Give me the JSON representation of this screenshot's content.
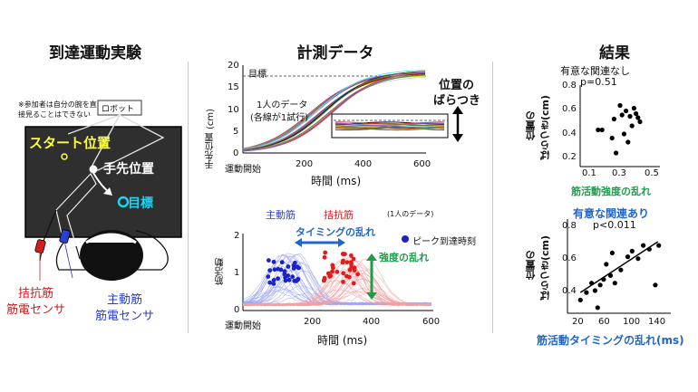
{
  "panels": {
    "experiment": {
      "title": "到達運動実験",
      "note": "※参加者は自分の腕を直接見ることはできない",
      "robot": "ロボット",
      "start": "スタート位置",
      "hand": "手先位置",
      "target": "目標",
      "antagonist_sensor": [
        "拮抗筋",
        "筋電センサ"
      ],
      "agonist_sensor": [
        "主動筋",
        "筋電センサ"
      ]
    },
    "measurement": {
      "title": "計測データ",
      "top_plot": {
        "ylabel": "手先位置 (cm)",
        "xlabel": "時間 (ms)",
        "x0_label": "運動開始",
        "target_label": "目標",
        "one_person_label": [
          "1人のデータ",
          "(各線が1試行)"
        ],
        "variability_label": [
          "位置の",
          "ばらつき"
        ],
        "y_ticks": [
          "20",
          "15",
          "10",
          "5",
          "0"
        ],
        "x_ticks": [
          "200",
          "400",
          "600"
        ]
      },
      "bottom_plot": {
        "ylabel": "筋活動",
        "xlabel": "時間 (ms)",
        "x0_label": "運動開始",
        "agonist": "主動筋",
        "antagonist": "拮抗筋",
        "one_person_label": "(1人のデータ)",
        "timing_label": "タイミングの乱れ",
        "peak_label": "ピーク到達時刻",
        "intensity_label": "強度の乱れ",
        "y_ticks": [
          "2",
          "1",
          "0"
        ],
        "x_ticks": [
          "200",
          "400",
          "600"
        ]
      }
    },
    "results": {
      "title": "結果",
      "top": {
        "heading": "有意な関連なし",
        "p": "p=0.51",
        "ylabel": [
          "位置の",
          "ばらつき(cm)"
        ],
        "xlabel": "筋活動強度の乱れ",
        "y_ticks": [
          "0.8",
          "0.6",
          "0.4",
          "0.2"
        ],
        "x_ticks": [
          "0.1",
          "0.3",
          "0.5"
        ]
      },
      "bottom": {
        "heading": "有意な関連あり",
        "p": "p<0.011",
        "ylabel": [
          "位置の",
          "ばらつき(cm)"
        ],
        "xlabel": "筋活動タイミングの乱れ(ms)",
        "y_ticks": [
          "0.8",
          "0.6",
          "0.4"
        ],
        "x_ticks": [
          "20",
          "60",
          "100",
          "140"
        ]
      }
    }
  },
  "chart_data": [
    {
      "type": "scatter",
      "xlim": [
        0.1,
        0.5
      ],
      "ylim": [
        0.2,
        0.8
      ],
      "xlabel": "筋活動強度の乱れ",
      "points": [
        [
          0.19,
          0.47
        ],
        [
          0.21,
          0.47
        ],
        [
          0.26,
          0.41
        ],
        [
          0.27,
          0.55
        ],
        [
          0.28,
          0.3
        ],
        [
          0.3,
          0.65
        ],
        [
          0.31,
          0.58
        ],
        [
          0.32,
          0.44
        ],
        [
          0.33,
          0.61
        ],
        [
          0.34,
          0.38
        ],
        [
          0.35,
          0.57
        ],
        [
          0.36,
          0.5
        ],
        [
          0.37,
          0.63
        ],
        [
          0.38,
          0.59
        ],
        [
          0.39,
          0.56
        ],
        [
          0.4,
          0.53
        ]
      ]
    },
    {
      "type": "scatter",
      "xlim": [
        20,
        140
      ],
      "ylim": [
        0.3,
        0.8
      ],
      "xlabel": "筋活動タイミングの乱れ(ms)",
      "trendline": [
        [
          35,
          0.41
        ],
        [
          125,
          0.68
        ]
      ],
      "points": [
        [
          35,
          0.37
        ],
        [
          42,
          0.41
        ],
        [
          48,
          0.46
        ],
        [
          52,
          0.42
        ],
        [
          55,
          0.33
        ],
        [
          58,
          0.45
        ],
        [
          62,
          0.48
        ],
        [
          65,
          0.56
        ],
        [
          70,
          0.5
        ],
        [
          72,
          0.62
        ],
        [
          75,
          0.46
        ],
        [
          82,
          0.53
        ],
        [
          90,
          0.6
        ],
        [
          95,
          0.63
        ],
        [
          102,
          0.59
        ],
        [
          108,
          0.66
        ],
        [
          115,
          0.64
        ],
        [
          122,
          0.45
        ],
        [
          126,
          0.66
        ]
      ]
    }
  ]
}
